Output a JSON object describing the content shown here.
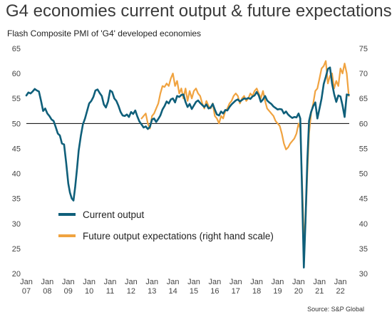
{
  "header": {
    "title": "G4 economies current output & future expectations",
    "subtitle": "Flash Composite PMI of 'G4' developed economies"
  },
  "footer": {
    "source": "Source: S&P Global"
  },
  "colors": {
    "current": "#0f5f7a",
    "future": "#f0a340",
    "baseline": "#000000"
  },
  "chart_data": {
    "type": "line",
    "title": "G4 economies current output & future expectations",
    "subtitle": "Flash Composite PMI of 'G4' developed economies",
    "ylim": [
      20,
      65
    ],
    "y2lim": [
      30,
      75
    ],
    "yticks": [
      20,
      25,
      30,
      35,
      40,
      45,
      50,
      55,
      60,
      65
    ],
    "y2ticks": [
      30,
      35,
      40,
      45,
      50,
      55,
      60,
      65,
      70,
      75
    ],
    "xlim": [
      2007.0,
      2022.42
    ],
    "xticks": [
      {
        "month": "Jan",
        "year": "07",
        "x": 2007.0
      },
      {
        "month": "Jan",
        "year": "08",
        "x": 2008.0
      },
      {
        "month": "Jan",
        "year": "09",
        "x": 2009.0
      },
      {
        "month": "Jan",
        "year": "10",
        "x": 2010.0
      },
      {
        "month": "Jan",
        "year": "11",
        "x": 2011.0
      },
      {
        "month": "Jan",
        "year": "12",
        "x": 2012.0
      },
      {
        "month": "Jan",
        "year": "13",
        "x": 2013.0
      },
      {
        "month": "Jan",
        "year": "14",
        "x": 2014.0
      },
      {
        "month": "Jan",
        "year": "15",
        "x": 2015.0
      },
      {
        "month": "Jan",
        "year": "16",
        "x": 2016.0
      },
      {
        "month": "Jan",
        "year": "17",
        "x": 2017.0
      },
      {
        "month": "Jan",
        "year": "18",
        "x": 2018.0
      },
      {
        "month": "Jan",
        "year": "19",
        "x": 2019.0
      },
      {
        "month": "Jan",
        "year": "20",
        "x": 2020.0
      },
      {
        "month": "Jan",
        "year": "21",
        "x": 2021.0
      },
      {
        "month": "Jan",
        "year": "22",
        "x": 2022.0
      }
    ],
    "reference_line": 50,
    "legend": {
      "position": "center-left"
    },
    "series": [
      {
        "name": "Current output",
        "axis": "left",
        "points": [
          [
            2007.0,
            55.6
          ],
          [
            2007.1,
            56.2
          ],
          [
            2007.2,
            56.0
          ],
          [
            2007.3,
            56.4
          ],
          [
            2007.4,
            56.9
          ],
          [
            2007.5,
            56.6
          ],
          [
            2007.6,
            56.4
          ],
          [
            2007.7,
            54.5
          ],
          [
            2007.8,
            52.5
          ],
          [
            2007.9,
            53.0
          ],
          [
            2008.0,
            52.0
          ],
          [
            2008.1,
            51.5
          ],
          [
            2008.2,
            50.8
          ],
          [
            2008.3,
            50.5
          ],
          [
            2008.4,
            49.3
          ],
          [
            2008.5,
            48.0
          ],
          [
            2008.6,
            47.6
          ],
          [
            2008.7,
            46.0
          ],
          [
            2008.8,
            45.8
          ],
          [
            2008.9,
            42.2
          ],
          [
            2009.0,
            38.0
          ],
          [
            2009.08,
            36.2
          ],
          [
            2009.17,
            35.0
          ],
          [
            2009.25,
            34.6
          ],
          [
            2009.33,
            37.2
          ],
          [
            2009.42,
            41.0
          ],
          [
            2009.5,
            44.6
          ],
          [
            2009.6,
            47.5
          ],
          [
            2009.7,
            49.8
          ],
          [
            2009.8,
            51.0
          ],
          [
            2010.0,
            54.0
          ],
          [
            2010.1,
            54.5
          ],
          [
            2010.2,
            55.3
          ],
          [
            2010.3,
            56.6
          ],
          [
            2010.4,
            56.8
          ],
          [
            2010.5,
            56.1
          ],
          [
            2010.6,
            55.5
          ],
          [
            2010.7,
            53.8
          ],
          [
            2010.8,
            53.2
          ],
          [
            2010.9,
            54.4
          ],
          [
            2011.0,
            56.6
          ],
          [
            2011.1,
            56.3
          ],
          [
            2011.2,
            55.0
          ],
          [
            2011.3,
            54.5
          ],
          [
            2011.4,
            53.5
          ],
          [
            2011.5,
            52.3
          ],
          [
            2011.6,
            51.6
          ],
          [
            2011.7,
            51.5
          ],
          [
            2011.8,
            51.8
          ],
          [
            2011.9,
            51.3
          ],
          [
            2012.0,
            52.3
          ],
          [
            2012.1,
            51.9
          ],
          [
            2012.2,
            52.6
          ],
          [
            2012.3,
            51.4
          ],
          [
            2012.4,
            50.4
          ],
          [
            2012.5,
            49.8
          ],
          [
            2012.6,
            49.2
          ],
          [
            2012.7,
            49.4
          ],
          [
            2012.8,
            48.9
          ],
          [
            2012.9,
            49.3
          ],
          [
            2013.0,
            50.8
          ],
          [
            2013.1,
            51.0
          ],
          [
            2013.2,
            50.3
          ],
          [
            2013.3,
            50.9
          ],
          [
            2013.4,
            51.6
          ],
          [
            2013.5,
            52.8
          ],
          [
            2013.6,
            53.5
          ],
          [
            2013.7,
            54.4
          ],
          [
            2013.8,
            54.0
          ],
          [
            2013.9,
            54.8
          ],
          [
            2014.0,
            55.0
          ],
          [
            2014.1,
            54.2
          ],
          [
            2014.2,
            55.5
          ],
          [
            2014.3,
            55.3
          ],
          [
            2014.4,
            55.7
          ],
          [
            2014.5,
            55.8
          ],
          [
            2014.6,
            54.3
          ],
          [
            2014.7,
            53.3
          ],
          [
            2014.8,
            53.9
          ],
          [
            2014.9,
            52.9
          ],
          [
            2015.0,
            53.6
          ],
          [
            2015.1,
            54.3
          ],
          [
            2015.2,
            54.6
          ],
          [
            2015.3,
            54.1
          ],
          [
            2015.4,
            53.7
          ],
          [
            2015.5,
            53.3
          ],
          [
            2015.6,
            53.8
          ],
          [
            2015.7,
            53.0
          ],
          [
            2015.8,
            53.2
          ],
          [
            2015.9,
            53.9
          ],
          [
            2016.0,
            52.8
          ],
          [
            2016.1,
            51.8
          ],
          [
            2016.2,
            51.6
          ],
          [
            2016.3,
            52.4
          ],
          [
            2016.4,
            52.0
          ],
          [
            2016.5,
            52.7
          ],
          [
            2016.6,
            52.6
          ],
          [
            2016.7,
            53.3
          ],
          [
            2016.8,
            53.8
          ],
          [
            2016.9,
            54.2
          ],
          [
            2017.0,
            54.6
          ],
          [
            2017.1,
            54.8
          ],
          [
            2017.2,
            54.4
          ],
          [
            2017.3,
            54.7
          ],
          [
            2017.4,
            55.0
          ],
          [
            2017.5,
            54.9
          ],
          [
            2017.6,
            55.1
          ],
          [
            2017.7,
            54.9
          ],
          [
            2017.8,
            55.4
          ],
          [
            2017.9,
            55.6
          ],
          [
            2018.0,
            56.3
          ],
          [
            2018.1,
            55.6
          ],
          [
            2018.2,
            54.3
          ],
          [
            2018.3,
            54.8
          ],
          [
            2018.4,
            55.5
          ],
          [
            2018.5,
            54.6
          ],
          [
            2018.6,
            54.2
          ],
          [
            2018.7,
            53.9
          ],
          [
            2018.8,
            53.4
          ],
          [
            2018.9,
            53.1
          ],
          [
            2019.0,
            52.8
          ],
          [
            2019.1,
            52.9
          ],
          [
            2019.2,
            52.8
          ],
          [
            2019.3,
            52.0
          ],
          [
            2019.4,
            52.4
          ],
          [
            2019.5,
            51.8
          ],
          [
            2019.6,
            51.4
          ],
          [
            2019.7,
            51.1
          ],
          [
            2019.8,
            51.3
          ],
          [
            2019.9,
            51.2
          ],
          [
            2020.0,
            52.0
          ],
          [
            2020.08,
            51.0
          ],
          [
            2020.17,
            36.0
          ],
          [
            2020.25,
            21.2
          ],
          [
            2020.33,
            30.5
          ],
          [
            2020.42,
            42.5
          ],
          [
            2020.5,
            50.5
          ],
          [
            2020.6,
            52.3
          ],
          [
            2020.7,
            53.5
          ],
          [
            2020.8,
            54.2
          ],
          [
            2020.9,
            51.0
          ],
          [
            2021.0,
            53.0
          ],
          [
            2021.1,
            55.0
          ],
          [
            2021.2,
            57.9
          ],
          [
            2021.3,
            59.3
          ],
          [
            2021.4,
            60.9
          ],
          [
            2021.5,
            61.2
          ],
          [
            2021.6,
            58.0
          ],
          [
            2021.7,
            55.9
          ],
          [
            2021.8,
            54.3
          ],
          [
            2021.9,
            55.6
          ],
          [
            2022.0,
            55.4
          ],
          [
            2022.1,
            53.6
          ],
          [
            2022.2,
            51.3
          ],
          [
            2022.3,
            55.8
          ],
          [
            2022.4,
            55.7
          ]
        ]
      },
      {
        "name": "Future output expectations (right hand scale)",
        "axis": "right",
        "points": [
          [
            2012.5,
            61.0
          ],
          [
            2012.6,
            61.5
          ],
          [
            2012.7,
            62.0
          ],
          [
            2012.8,
            60.0
          ],
          [
            2012.9,
            59.0
          ],
          [
            2013.0,
            61.5
          ],
          [
            2013.1,
            62.0
          ],
          [
            2013.2,
            63.0
          ],
          [
            2013.3,
            64.0
          ],
          [
            2013.4,
            66.0
          ],
          [
            2013.5,
            67.5
          ],
          [
            2013.6,
            67.3
          ],
          [
            2013.7,
            68.0
          ],
          [
            2013.8,
            67.5
          ],
          [
            2013.9,
            69.0
          ],
          [
            2014.0,
            70.0
          ],
          [
            2014.1,
            67.5
          ],
          [
            2014.2,
            68.5
          ],
          [
            2014.3,
            66.0
          ],
          [
            2014.4,
            67.0
          ],
          [
            2014.5,
            65.0
          ],
          [
            2014.6,
            67.0
          ],
          [
            2014.7,
            64.5
          ],
          [
            2014.8,
            66.5
          ],
          [
            2014.9,
            65.0
          ],
          [
            2015.0,
            66.5
          ],
          [
            2015.1,
            67.0
          ],
          [
            2015.2,
            66.0
          ],
          [
            2015.3,
            65.5
          ],
          [
            2015.4,
            64.0
          ],
          [
            2015.5,
            63.0
          ],
          [
            2015.6,
            64.5
          ],
          [
            2015.7,
            63.5
          ],
          [
            2015.8,
            63.0
          ],
          [
            2015.9,
            64.0
          ],
          [
            2016.0,
            61.5
          ],
          [
            2016.1,
            61.0
          ],
          [
            2016.2,
            60.0
          ],
          [
            2016.3,
            61.5
          ],
          [
            2016.4,
            61.0
          ],
          [
            2016.5,
            62.5
          ],
          [
            2016.6,
            63.0
          ],
          [
            2016.7,
            64.0
          ],
          [
            2016.8,
            64.5
          ],
          [
            2016.9,
            65.5
          ],
          [
            2017.0,
            66.0
          ],
          [
            2017.1,
            65.5
          ],
          [
            2017.2,
            64.0
          ],
          [
            2017.3,
            65.0
          ],
          [
            2017.4,
            65.5
          ],
          [
            2017.5,
            64.5
          ],
          [
            2017.6,
            65.0
          ],
          [
            2017.7,
            66.0
          ],
          [
            2017.8,
            65.5
          ],
          [
            2017.9,
            66.5
          ],
          [
            2018.0,
            67.0
          ],
          [
            2018.1,
            66.0
          ],
          [
            2018.2,
            65.0
          ],
          [
            2018.3,
            66.5
          ],
          [
            2018.4,
            64.5
          ],
          [
            2018.5,
            63.0
          ],
          [
            2018.6,
            62.5
          ],
          [
            2018.7,
            62.0
          ],
          [
            2018.8,
            61.5
          ],
          [
            2018.9,
            60.5
          ],
          [
            2019.0,
            60.0
          ],
          [
            2019.1,
            59.5
          ],
          [
            2019.2,
            58.0
          ],
          [
            2019.3,
            56.0
          ],
          [
            2019.4,
            54.8
          ],
          [
            2019.5,
            55.2
          ],
          [
            2019.6,
            56.0
          ],
          [
            2019.7,
            56.5
          ],
          [
            2019.8,
            57.0
          ],
          [
            2019.9,
            58.0
          ],
          [
            2020.0,
            60.0
          ],
          [
            2020.08,
            59.0
          ],
          [
            2020.17,
            48.0
          ],
          [
            2020.25,
            37.5
          ],
          [
            2020.33,
            40.0
          ],
          [
            2020.42,
            50.0
          ],
          [
            2020.5,
            58.0
          ],
          [
            2020.6,
            62.0
          ],
          [
            2020.7,
            64.0
          ],
          [
            2020.8,
            66.5
          ],
          [
            2020.9,
            67.0
          ],
          [
            2021.0,
            69.0
          ],
          [
            2021.1,
            71.0
          ],
          [
            2021.2,
            71.5
          ],
          [
            2021.3,
            72.5
          ],
          [
            2021.4,
            68.0
          ],
          [
            2021.5,
            69.5
          ],
          [
            2021.6,
            70.0
          ],
          [
            2021.7,
            67.0
          ],
          [
            2021.8,
            68.5
          ],
          [
            2021.9,
            67.5
          ],
          [
            2022.0,
            71.0
          ],
          [
            2022.1,
            70.0
          ],
          [
            2022.2,
            72.0
          ],
          [
            2022.3,
            70.0
          ],
          [
            2022.4,
            65.5
          ]
        ]
      }
    ]
  }
}
